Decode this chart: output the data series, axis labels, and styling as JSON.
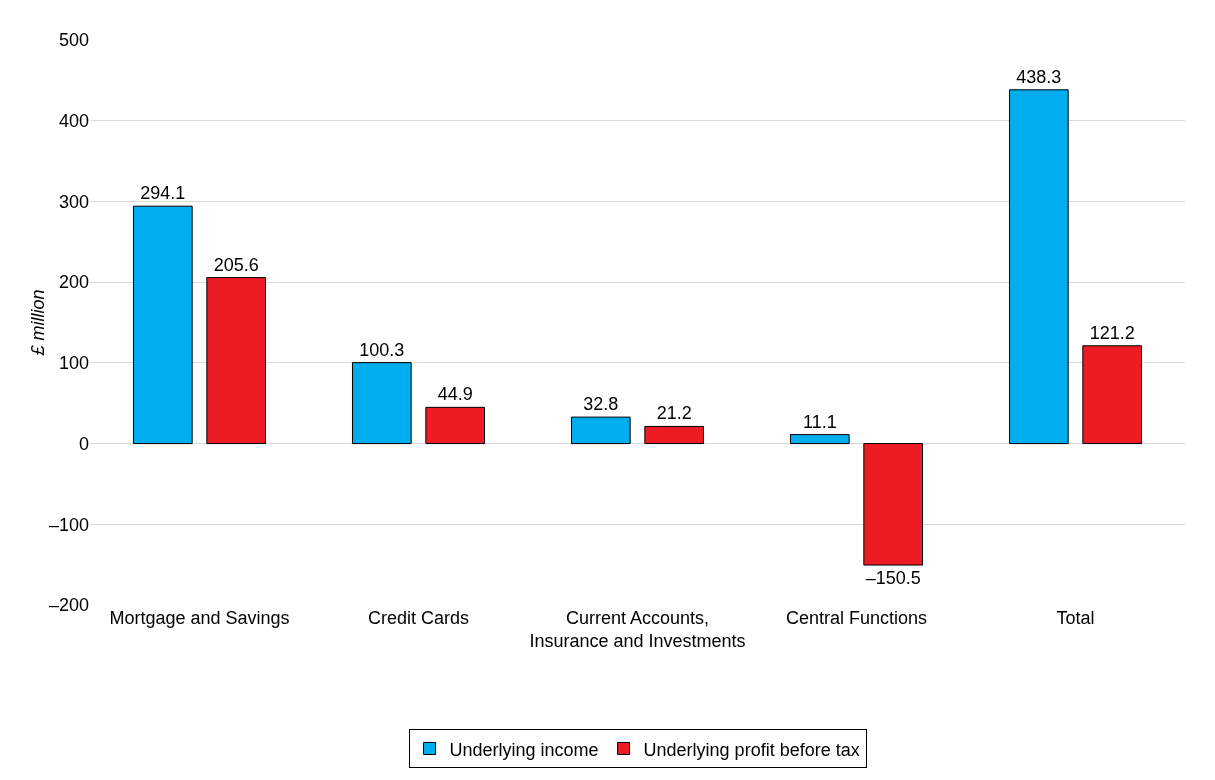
{
  "chart_data": {
    "type": "bar",
    "ylabel": "£ million",
    "categories": [
      "Mortgage and Savings",
      "Credit Cards",
      "Current Accounts, Insurance and Investments",
      "Central Functions",
      "Total"
    ],
    "series": [
      {
        "name": "Underlying income",
        "color": "#00adef",
        "values": [
          294.1,
          100.3,
          32.8,
          11.1,
          438.3
        ],
        "value_labels": [
          "294.1",
          "100.3",
          "32.8",
          "11.1",
          "438.3"
        ]
      },
      {
        "name": "Underlying profit before tax",
        "color": "#ed1c24",
        "values": [
          205.6,
          44.9,
          21.2,
          -150.5,
          121.2
        ],
        "value_labels": [
          "205.6",
          "44.9",
          "21.2",
          "–150.5",
          "121.2"
        ]
      }
    ],
    "ylim": [
      -200,
      500
    ],
    "yticks": [
      {
        "value": -200,
        "label": "–200"
      },
      {
        "value": -100,
        "label": "–100"
      },
      0,
      100,
      200,
      300,
      400,
      500
    ],
    "grid": "y",
    "legend": "bottom"
  }
}
